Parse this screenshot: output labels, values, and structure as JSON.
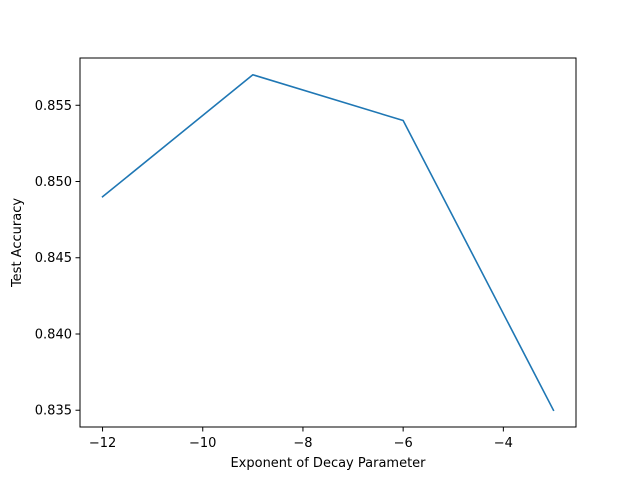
{
  "chart_data": {
    "type": "line",
    "title": "",
    "xlabel": "Exponent of Decay Parameter",
    "ylabel": "Test Accuracy",
    "xlim": [
      -12.45,
      -2.55
    ],
    "ylim": [
      0.8339,
      0.8581
    ],
    "x_ticks": [
      -12,
      -10,
      -8,
      -6,
      -4
    ],
    "x_tick_labels": [
      "−12",
      "−10",
      "−8",
      "−6",
      "−4"
    ],
    "y_ticks": [
      0.835,
      0.84,
      0.845,
      0.85,
      0.855
    ],
    "y_tick_labels": [
      "0.835",
      "0.840",
      "0.845",
      "0.850",
      "0.855"
    ],
    "grid": false,
    "legend": "none",
    "series": [
      {
        "color": "#1f77b4",
        "x": [
          -12,
          -9,
          -6,
          -3
        ],
        "y": [
          0.849,
          0.857,
          0.854,
          0.835
        ]
      }
    ]
  }
}
